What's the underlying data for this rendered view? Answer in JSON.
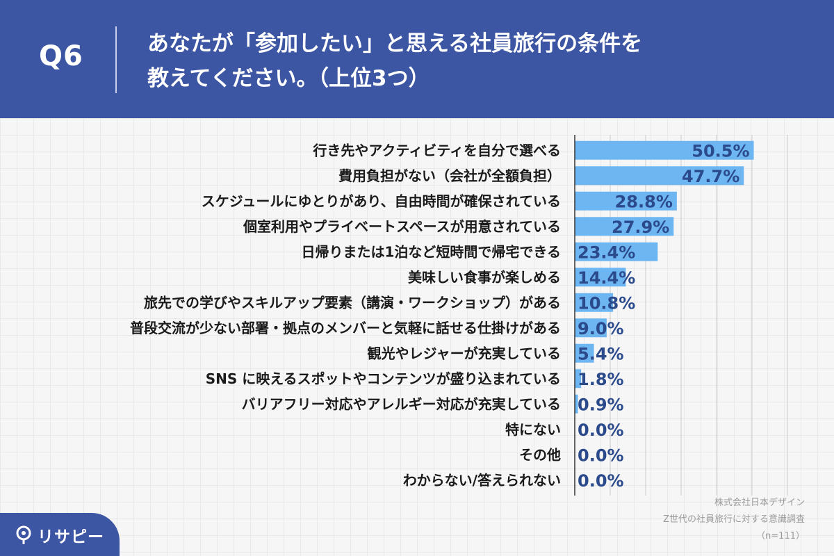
{
  "header": {
    "question": "Q6",
    "title_line1": "あなたが「参加したい」と思える社員旅行の条件を",
    "title_line2": "教えてください。（上位3つ）"
  },
  "chart_data": {
    "type": "bar",
    "orientation": "horizontal",
    "categories": [
      "行き先やアクティビティを自分で選べる",
      "費用負担がない（会社が全額負担）",
      "スケジュールにゆとりがあり、自由時間が確保されている",
      "個室利用やプライベートスペースが用意されている",
      "日帰りまたは1泊など短時間で帰宅できる",
      "美味しい食事が楽しめる",
      "旅先での学びやスキルアップ要素（講演・ワークショップ）がある",
      "普段交流が少ない部署・拠点のメンバーと気軽に話せる仕掛けがある",
      "観光やレジャーが充実している",
      "SNS に映えるスポットやコンテンツが盛り込まれている",
      "バリアフリー対応やアレルギー対応が充実している",
      "特にない",
      "その他",
      "わからない/答えられない"
    ],
    "values": [
      50.5,
      47.7,
      28.8,
      27.9,
      23.4,
      14.4,
      10.8,
      9.0,
      5.4,
      1.8,
      0.9,
      0.0,
      0.0,
      0.0
    ],
    "value_labels": [
      "50.5%",
      "47.7%",
      "28.8%",
      "27.9%",
      "23.4%",
      "14.4%",
      "10.8%",
      "9.0%",
      "5.4%",
      "1.8%",
      "0.9%",
      "0.0%",
      "0.0%",
      "0.0%"
    ],
    "xlim": [
      0,
      60
    ],
    "grid": true,
    "bar_color": "#6eb6f2",
    "label_color": "#2b4a8c"
  },
  "notes": {
    "company": "株式会社日本デザイン",
    "survey": "Z世代の社員旅行に対する意識調査",
    "sample": "（n=111）"
  },
  "logo": {
    "text": "リサピー"
  },
  "colors": {
    "brand": "#3d56a3",
    "panel": "#f6f6f6"
  }
}
